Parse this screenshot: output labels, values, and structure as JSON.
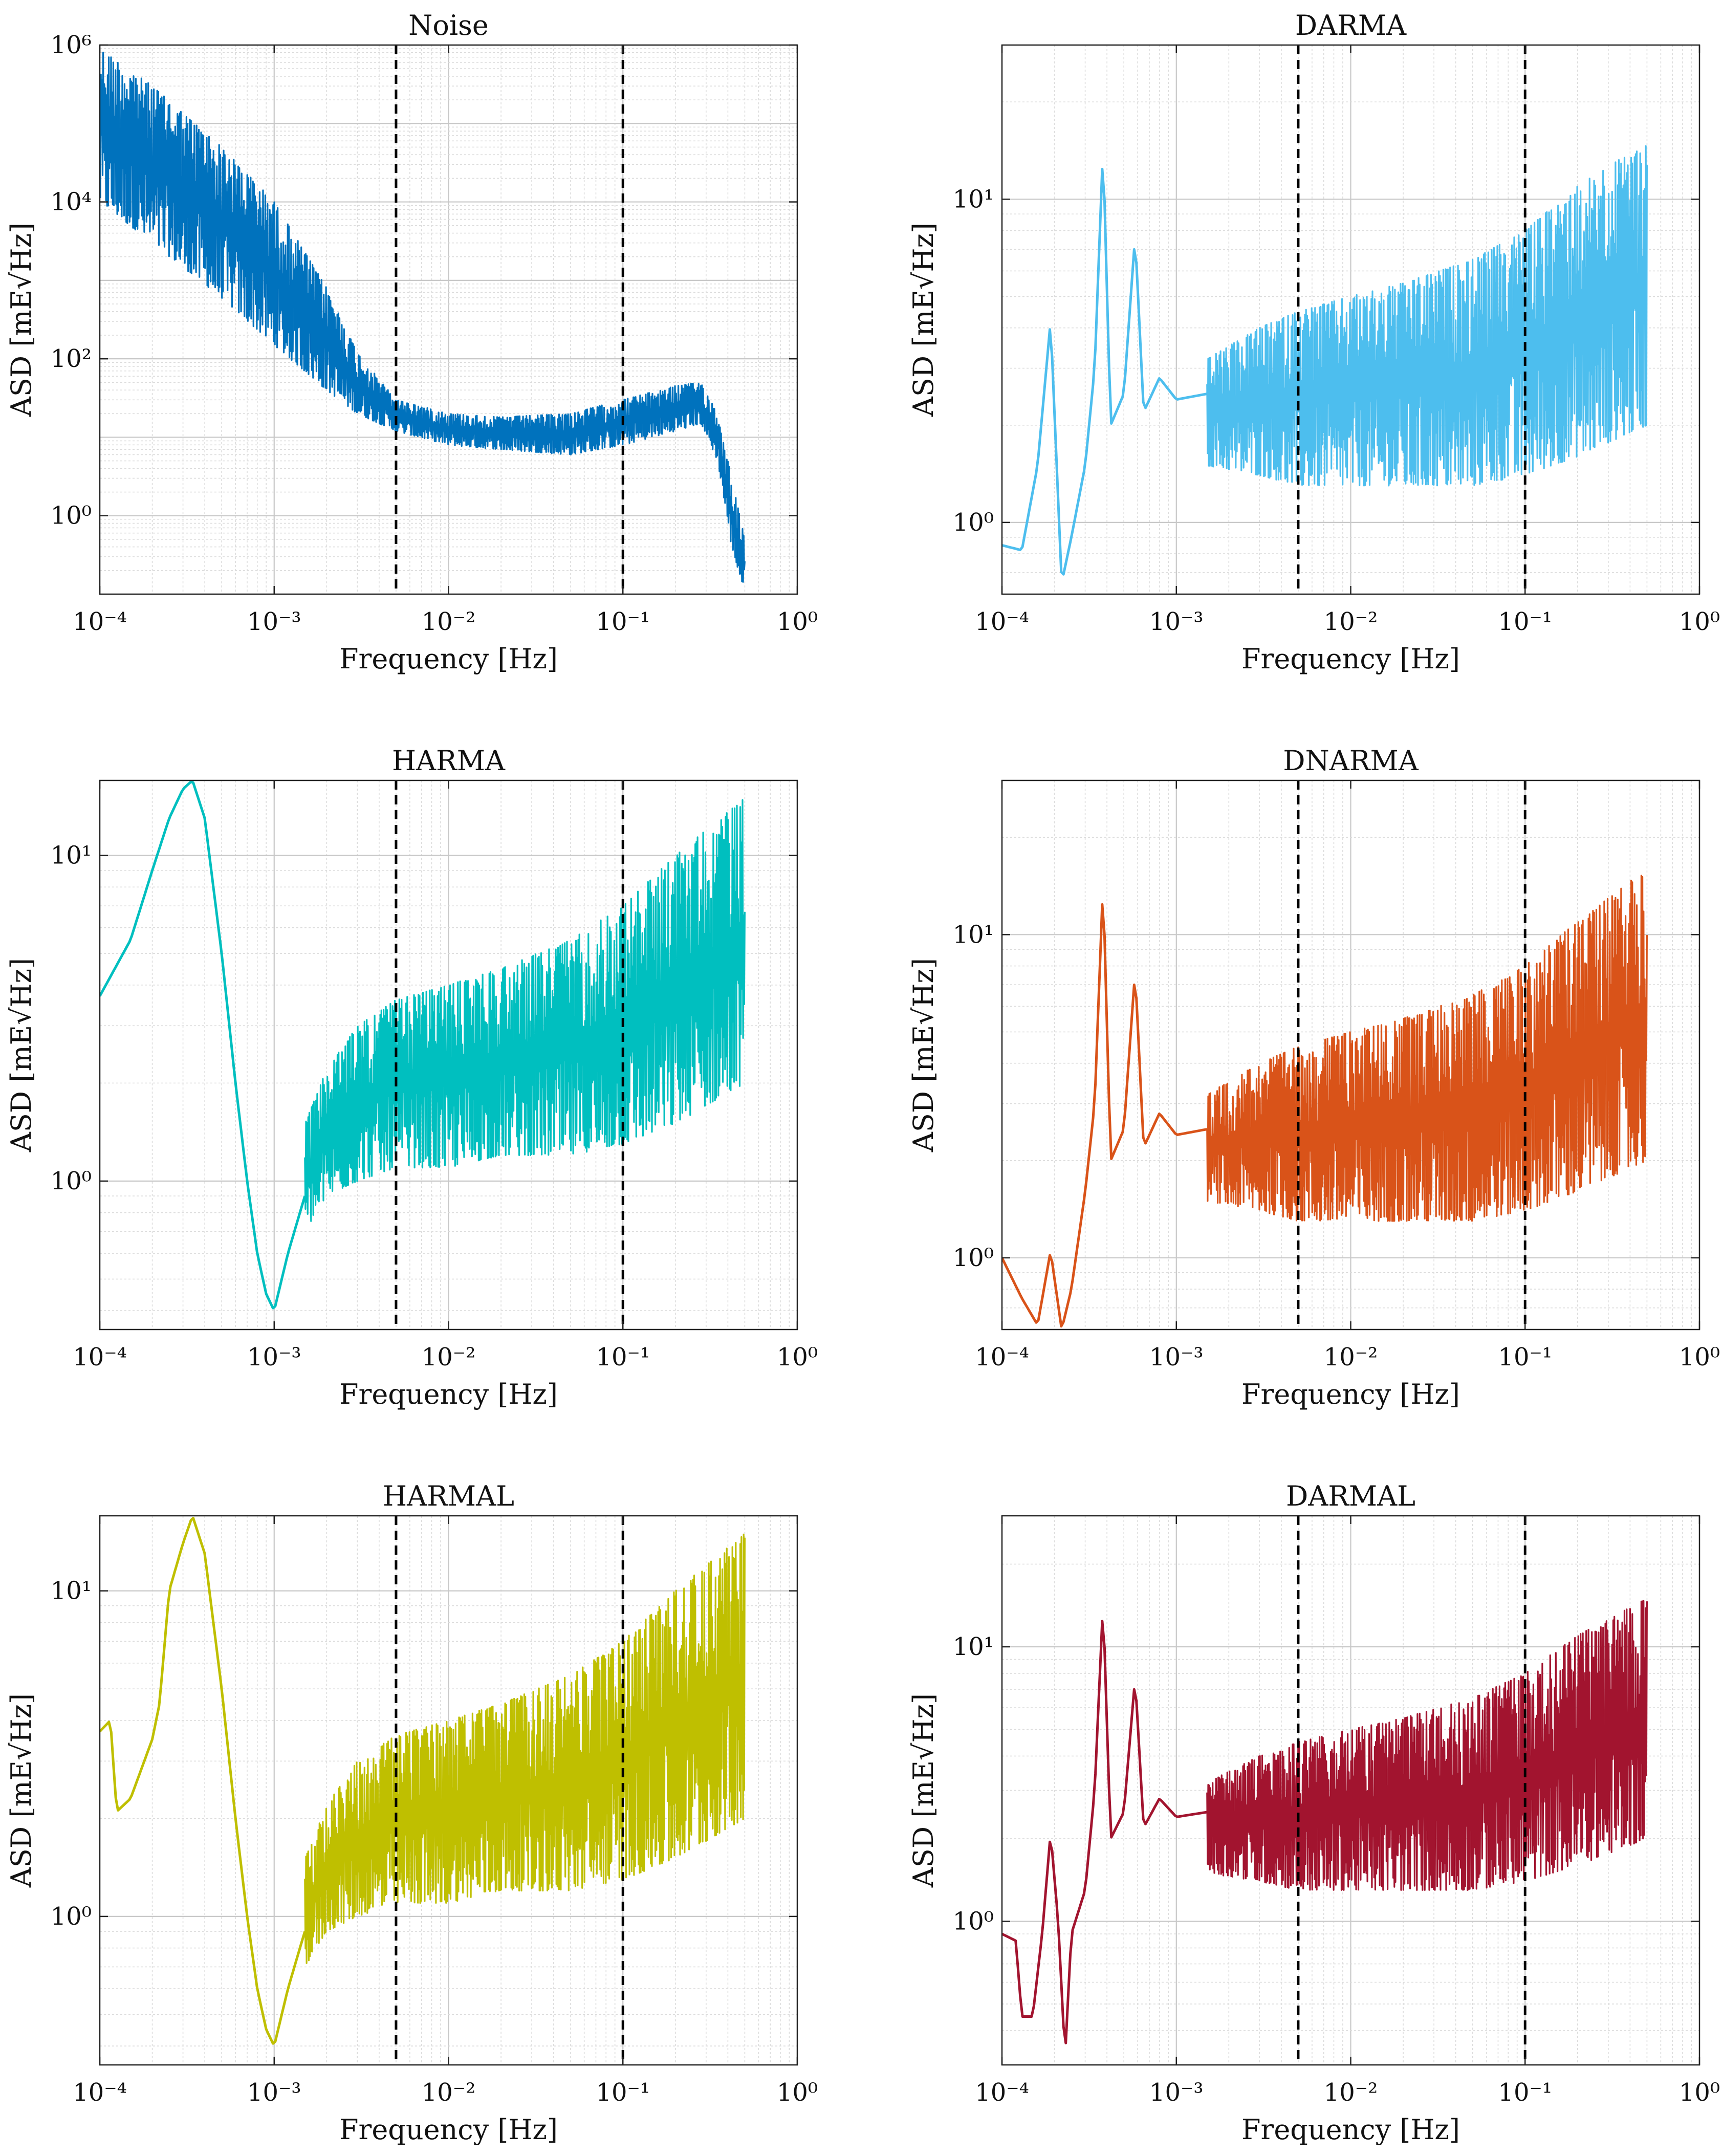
{
  "figure": {
    "xlabel": "Frequency [Hz]",
    "ylabel": "ASD [mE√Hz]",
    "x_tick_labels": [
      "10⁻⁴",
      "10⁻³",
      "10⁻²",
      "10⁻¹",
      "10⁰"
    ]
  },
  "chart_data": [
    {
      "type": "line",
      "title": "Noise",
      "color": "#0072BD",
      "xlabel": "Frequency [Hz]",
      "ylabel": "ASD [mE√Hz]",
      "x_scale": "log",
      "y_scale": "log",
      "xlim": [
        0.0001,
        1
      ],
      "ylim": [
        0.1,
        1000000
      ],
      "y_ticks": [
        1,
        100,
        10000,
        1000000
      ],
      "y_tick_labels": [
        "10⁰",
        "10²",
        "10⁴",
        "10⁶"
      ],
      "vlines": [
        0.005,
        0.1
      ],
      "vline_style": "dashed",
      "grid": true,
      "envelope": {
        "freq_hz": [
          0.0001,
          0.0002,
          0.0005,
          0.001,
          0.002,
          0.003,
          0.005,
          0.01,
          0.02,
          0.05,
          0.1,
          0.2,
          0.28,
          0.35,
          0.42,
          0.5
        ],
        "asd_high": [
          900000,
          300000,
          50000,
          10000,
          800,
          120,
          30,
          20,
          18,
          20,
          30,
          45,
          50,
          20,
          3,
          0.5
        ],
        "asd_low": [
          10000,
          3000,
          600,
          150,
          40,
          20,
          12,
          8,
          7,
          6,
          8,
          12,
          15,
          5,
          0.4,
          0.1
        ]
      }
    },
    {
      "type": "line",
      "title": "DARMA",
      "color": "#4DBEEE",
      "xlabel": "Frequency [Hz]",
      "ylabel": "ASD [mE√Hz]",
      "x_scale": "log",
      "y_scale": "log",
      "xlim": [
        0.0001,
        1
      ],
      "ylim": [
        0.6,
        30
      ],
      "y_ticks": [
        1,
        10
      ],
      "y_tick_labels": [
        "10⁰",
        "10¹"
      ],
      "vlines": [
        0.005,
        0.1
      ],
      "vline_style": "dashed",
      "grid": true,
      "curve": {
        "freq_hz": [
          0.0001,
          0.00013,
          0.00016,
          0.00019,
          0.00022,
          0.00025,
          0.0003,
          0.00034,
          0.00038,
          0.00042,
          0.0005,
          0.00058,
          0.00065,
          0.0008,
          0.001,
          0.0015
        ],
        "asd": [
          0.85,
          0.82,
          1.5,
          4.2,
          0.65,
          0.9,
          1.5,
          3.0,
          14.5,
          2.0,
          2.5,
          7.7,
          2.2,
          2.8,
          2.4,
          2.5
        ]
      },
      "envelope": {
        "freq_hz": [
          0.0015,
          0.003,
          0.005,
          0.01,
          0.02,
          0.05,
          0.1,
          0.2,
          0.5
        ],
        "asd_high": [
          3.2,
          4.0,
          4.5,
          5.0,
          5.5,
          6.5,
          8.0,
          11.0,
          15.0
        ],
        "asd_low": [
          1.5,
          1.4,
          1.3,
          1.3,
          1.3,
          1.3,
          1.4,
          1.6,
          2.0
        ]
      }
    },
    {
      "type": "line",
      "title": "HARMA",
      "color": "#00BFBF",
      "xlabel": "Frequency [Hz]",
      "ylabel": "ASD [mE√Hz]",
      "x_scale": "log",
      "y_scale": "log",
      "xlim": [
        0.0001,
        1
      ],
      "ylim": [
        0.35,
        17
      ],
      "y_ticks": [
        1,
        10
      ],
      "y_tick_labels": [
        "10⁰",
        "10¹"
      ],
      "vlines": [
        0.005,
        0.1
      ],
      "vline_style": "dashed",
      "grid": true,
      "curve": {
        "freq_hz": [
          0.0001,
          0.00015,
          0.0002,
          0.00025,
          0.0003,
          0.00034,
          0.0004,
          0.0005,
          0.0006,
          0.0007,
          0.0008,
          0.0009,
          0.001,
          0.0012,
          0.0015
        ],
        "asd": [
          3.7,
          5.5,
          9.0,
          13.0,
          16.0,
          17.0,
          13.0,
          5.0,
          2.0,
          1.0,
          0.6,
          0.45,
          0.4,
          0.6,
          0.9
        ]
      },
      "envelope": {
        "freq_hz": [
          0.0015,
          0.002,
          0.003,
          0.005,
          0.01,
          0.02,
          0.05,
          0.1,
          0.2,
          0.5
        ],
        "asd_high": [
          1.5,
          2.2,
          3.0,
          3.6,
          4.0,
          4.5,
          5.5,
          7.0,
          10.0,
          15.0
        ],
        "asd_low": [
          0.7,
          0.9,
          1.0,
          1.1,
          1.1,
          1.2,
          1.2,
          1.3,
          1.5,
          2.0
        ]
      }
    },
    {
      "type": "line",
      "title": "DNARMA",
      "color": "#D95319",
      "xlabel": "Frequency [Hz]",
      "ylabel": "ASD [mE√Hz]",
      "x_scale": "log",
      "y_scale": "log",
      "xlim": [
        0.0001,
        1
      ],
      "ylim": [
        0.6,
        30
      ],
      "y_ticks": [
        1,
        10
      ],
      "y_tick_labels": [
        "10⁰",
        "10¹"
      ],
      "vlines": [
        0.005,
        0.1
      ],
      "vline_style": "dashed",
      "grid": true,
      "curve": {
        "freq_hz": [
          0.0001,
          0.00013,
          0.00016,
          0.00019,
          0.00022,
          0.00025,
          0.0003,
          0.00034,
          0.00038,
          0.00042,
          0.0005,
          0.00058,
          0.00065,
          0.0008,
          0.001,
          0.0015
        ],
        "asd": [
          1.0,
          0.75,
          0.62,
          1.05,
          0.6,
          0.8,
          1.6,
          3.0,
          14.5,
          2.0,
          2.5,
          7.7,
          2.2,
          2.8,
          2.4,
          2.5
        ]
      },
      "envelope": {
        "freq_hz": [
          0.0015,
          0.003,
          0.005,
          0.01,
          0.02,
          0.05,
          0.1,
          0.2,
          0.5
        ],
        "asd_high": [
          3.2,
          4.0,
          4.5,
          5.0,
          5.5,
          6.5,
          8.0,
          11.0,
          16.0
        ],
        "asd_low": [
          1.5,
          1.4,
          1.3,
          1.3,
          1.3,
          1.3,
          1.4,
          1.6,
          2.0
        ]
      }
    },
    {
      "type": "line",
      "title": "HARMAL",
      "color": "#BFBF00",
      "xlabel": "Frequency [Hz]",
      "ylabel": "ASD [mE√Hz]",
      "x_scale": "log",
      "y_scale": "log",
      "xlim": [
        0.0001,
        1
      ],
      "ylim": [
        0.35,
        17
      ],
      "y_ticks": [
        1,
        10
      ],
      "y_tick_labels": [
        "10⁰",
        "10¹"
      ],
      "vlines": [
        0.005,
        0.1
      ],
      "vline_style": "dashed",
      "grid": true,
      "curve": {
        "freq_hz": [
          0.0001,
          0.000115,
          0.000125,
          0.00015,
          0.0002,
          0.00022,
          0.00025,
          0.0003,
          0.00034,
          0.0004,
          0.0005,
          0.0006,
          0.0007,
          0.0008,
          0.0009,
          0.001,
          0.0012,
          0.0015
        ],
        "asd": [
          3.7,
          4.0,
          2.1,
          2.3,
          3.5,
          4.5,
          10.0,
          14.0,
          17.0,
          13.0,
          5.0,
          2.0,
          1.0,
          0.6,
          0.45,
          0.4,
          0.6,
          0.9
        ]
      },
      "envelope": {
        "freq_hz": [
          0.0015,
          0.002,
          0.003,
          0.005,
          0.01,
          0.02,
          0.05,
          0.1,
          0.2,
          0.5
        ],
        "asd_high": [
          1.5,
          2.2,
          3.0,
          3.6,
          4.0,
          4.5,
          5.5,
          7.0,
          10.0,
          15.0
        ],
        "asd_low": [
          0.7,
          0.9,
          1.0,
          1.1,
          1.1,
          1.2,
          1.2,
          1.3,
          1.5,
          2.0
        ]
      }
    },
    {
      "type": "line",
      "title": "DARMAL",
      "color": "#A2142F",
      "xlabel": "Frequency [Hz]",
      "ylabel": "ASD [mE√Hz]",
      "x_scale": "log",
      "y_scale": "log",
      "xlim": [
        0.0001,
        1
      ],
      "ylim": [
        0.3,
        30
      ],
      "y_ticks": [
        1,
        10
      ],
      "y_tick_labels": [
        "10⁰",
        "10¹"
      ],
      "vlines": [
        0.005,
        0.1
      ],
      "vline_style": "dashed",
      "grid": true,
      "curve": {
        "freq_hz": [
          0.0001,
          0.00012,
          0.00013,
          0.00015,
          0.00017,
          0.00019,
          0.00021,
          0.00023,
          0.00025,
          0.0003,
          0.00034,
          0.00038,
          0.00042,
          0.0005,
          0.00058,
          0.00065,
          0.0008,
          0.001,
          0.0015
        ],
        "asd": [
          0.9,
          0.85,
          0.45,
          0.45,
          0.9,
          2.1,
          1.0,
          0.32,
          0.9,
          1.3,
          3.0,
          14.5,
          2.0,
          2.5,
          7.7,
          2.2,
          2.8,
          2.4,
          2.5
        ]
      },
      "envelope": {
        "freq_hz": [
          0.0015,
          0.003,
          0.005,
          0.01,
          0.02,
          0.05,
          0.1,
          0.2,
          0.5
        ],
        "asd_high": [
          3.2,
          4.0,
          4.5,
          5.0,
          5.5,
          6.5,
          8.0,
          11.0,
          15.0
        ],
        "asd_low": [
          1.5,
          1.4,
          1.3,
          1.3,
          1.3,
          1.3,
          1.4,
          1.6,
          2.0
        ]
      }
    }
  ]
}
